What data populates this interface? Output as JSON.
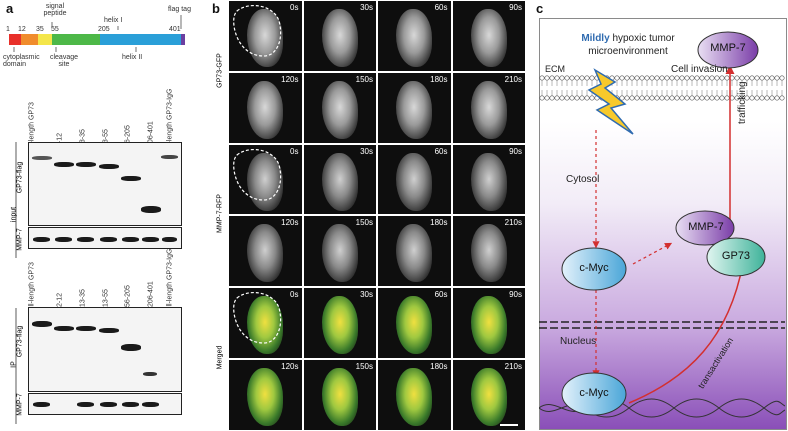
{
  "panel_a": {
    "letter": "a",
    "domain_map": {
      "top_labels": [
        "signal peptide",
        "helix I",
        "flag tag"
      ],
      "positions": [
        "1",
        "12",
        "35",
        "55",
        "205",
        "401"
      ],
      "bottom_labels": [
        "cytoplasmic domain",
        "cleavage site",
        "helix II"
      ],
      "segment_colors": [
        "#e8302a",
        "#f08c2c",
        "#f4e64a",
        "#4db848",
        "#2a9fd8",
        "#6b3fa0"
      ]
    },
    "lanes": [
      "full-length GP73",
      "△2-12",
      "△13-35",
      "△13-55",
      "△56-205",
      "△206-401",
      "full-length GP73-IgG"
    ],
    "input_block": {
      "group_label": "input",
      "blot1_label": "GP73-flag",
      "blot2_label": "MMP-7"
    },
    "ip_block": {
      "group_label": "IP",
      "blot1_label": "GP73-flag",
      "blot2_label": "MMP-7"
    }
  },
  "panel_b": {
    "letter": "b",
    "rows": [
      {
        "label": "GP73-GFP",
        "color": "#2fae3a"
      },
      {
        "label": "MMP-7-RFP",
        "color": "#e63a2a"
      },
      {
        "label": "Merged",
        "color": "#222222"
      }
    ],
    "times_top": [
      "0s",
      "30s",
      "60s",
      "90s"
    ],
    "times_bottom": [
      "120s",
      "150s",
      "180s",
      "210s"
    ]
  },
  "panel_c": {
    "letter": "c",
    "hypoxia_bold": "Mildly",
    "hypoxia_text": "hypoxic tumor",
    "hypoxia_text2": "microenvironment",
    "ecm": "ECM",
    "cell_invasion": "Cell invasion",
    "cytosol": "Cytosol",
    "nucleus": "Nucleus",
    "trafficking": "trafficking",
    "transactivation": "transactivation",
    "nodes": {
      "mmp7_top": "MMP-7",
      "mmp7_mid": "MMP-7",
      "cmyc_cyto": "c-Myc",
      "gp73": "GP73",
      "cmyc_nuc": "c-Myc"
    }
  }
}
